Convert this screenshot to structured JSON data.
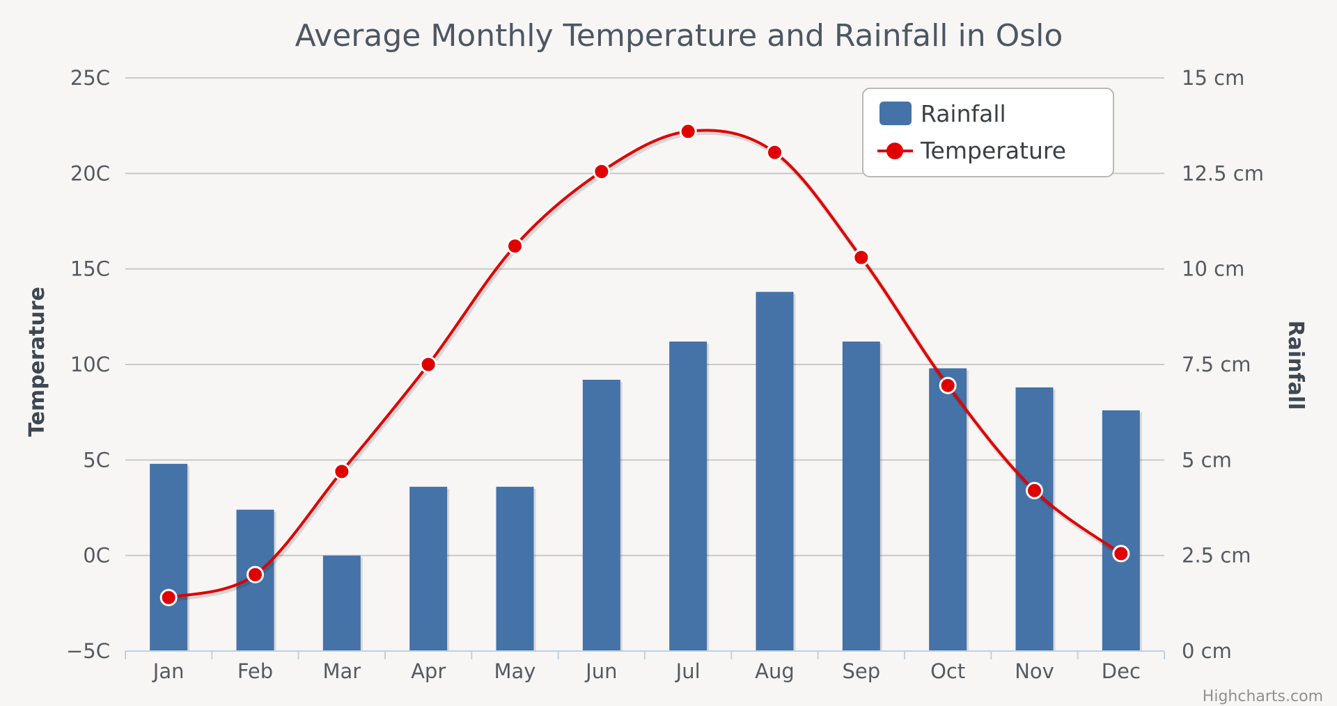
{
  "chart_data": {
    "type": "bar+line",
    "title": "Average Monthly Temperature and Rainfall in Oslo",
    "categories": [
      "Jan",
      "Feb",
      "Mar",
      "Apr",
      "May",
      "Jun",
      "Jul",
      "Aug",
      "Sep",
      "Oct",
      "Nov",
      "Dec"
    ],
    "y_left": {
      "title": "Temperature",
      "range": [
        -5,
        25
      ],
      "ticks": [
        -5,
        0,
        5,
        10,
        15,
        20,
        25
      ],
      "tick_labels": [
        "−5C",
        "0C",
        "5C",
        "10C",
        "15C",
        "20C",
        "25C"
      ]
    },
    "y_right": {
      "title": "Rainfall",
      "range": [
        0,
        15
      ],
      "ticks": [
        0,
        2.5,
        5,
        7.5,
        10,
        12.5,
        15
      ],
      "tick_labels": [
        "0 cm",
        "2.5 cm",
        "5 cm",
        "7.5 cm",
        "10 cm",
        "12.5 cm",
        "15 cm"
      ]
    },
    "series": [
      {
        "name": "Rainfall",
        "type": "bar",
        "axis": "right",
        "color": "#4572a7",
        "values": [
          4.9,
          3.7,
          2.5,
          4.3,
          4.3,
          7.1,
          8.1,
          9.4,
          8.1,
          7.4,
          6.9,
          6.3
        ]
      },
      {
        "name": "Temperature",
        "type": "spline",
        "axis": "left",
        "color": "#e00000",
        "values": [
          -2.2,
          -1.0,
          4.4,
          10.0,
          16.2,
          20.1,
          22.2,
          21.1,
          15.6,
          8.9,
          3.4,
          0.1
        ]
      }
    ],
    "legend": {
      "position": "top-right",
      "items": [
        "Rainfall",
        "Temperature"
      ]
    },
    "grid": true,
    "credits": "Highcharts.com"
  }
}
